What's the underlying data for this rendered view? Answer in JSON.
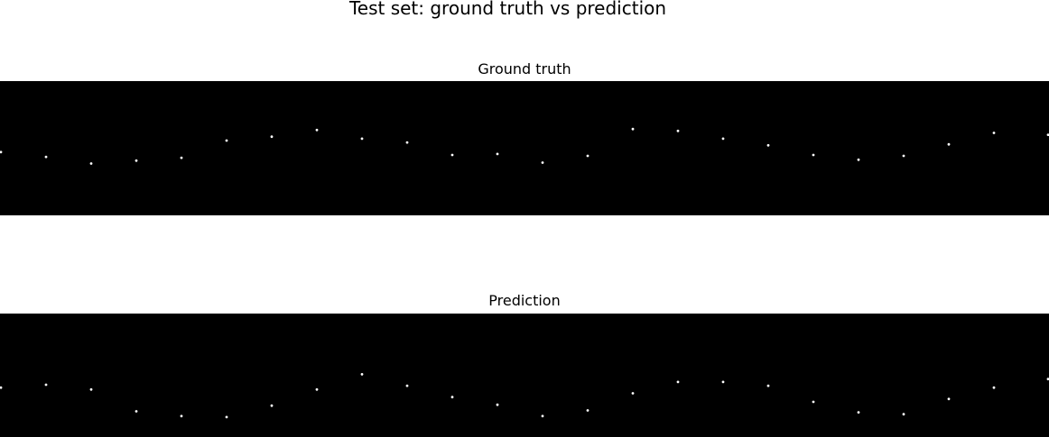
{
  "figure": {
    "title": "Test set: ground truth vs prediction"
  },
  "chart_data": [
    {
      "type": "scatter",
      "title": "Ground truth",
      "background": "#000000",
      "point_color": "#ffffff",
      "axes_visible": false,
      "grid": false,
      "x": [
        0,
        50,
        100,
        150,
        200,
        250,
        300,
        350,
        400,
        450,
        500,
        550,
        600,
        650,
        700,
        750,
        800,
        850,
        900,
        950,
        1000,
        1050,
        1100,
        1160
      ],
      "y": [
        0.66,
        0.61,
        0.54,
        0.57,
        0.6,
        0.78,
        0.82,
        0.89,
        0.8,
        0.76,
        0.63,
        0.64,
        0.55,
        0.62,
        0.9,
        0.88,
        0.8,
        0.73,
        0.63,
        0.58,
        0.62,
        0.74,
        0.86,
        0.84
      ],
      "ylim": [
        0,
        1.4
      ]
    },
    {
      "type": "scatter",
      "title": "Prediction",
      "background": "#000000",
      "point_color": "#ffffff",
      "axes_visible": false,
      "grid": false,
      "x": [
        0,
        50,
        100,
        150,
        200,
        250,
        300,
        350,
        400,
        450,
        500,
        550,
        600,
        650,
        700,
        750,
        800,
        850,
        900,
        950,
        1000,
        1050,
        1100,
        1160
      ],
      "y": [
        0.52,
        0.55,
        0.5,
        0.27,
        0.22,
        0.21,
        0.33,
        0.5,
        0.66,
        0.54,
        0.42,
        0.34,
        0.22,
        0.28,
        0.46,
        0.58,
        0.58,
        0.54,
        0.37,
        0.26,
        0.24,
        0.4,
        0.52,
        0.61
      ],
      "ylim": [
        0,
        1.3
      ]
    }
  ]
}
